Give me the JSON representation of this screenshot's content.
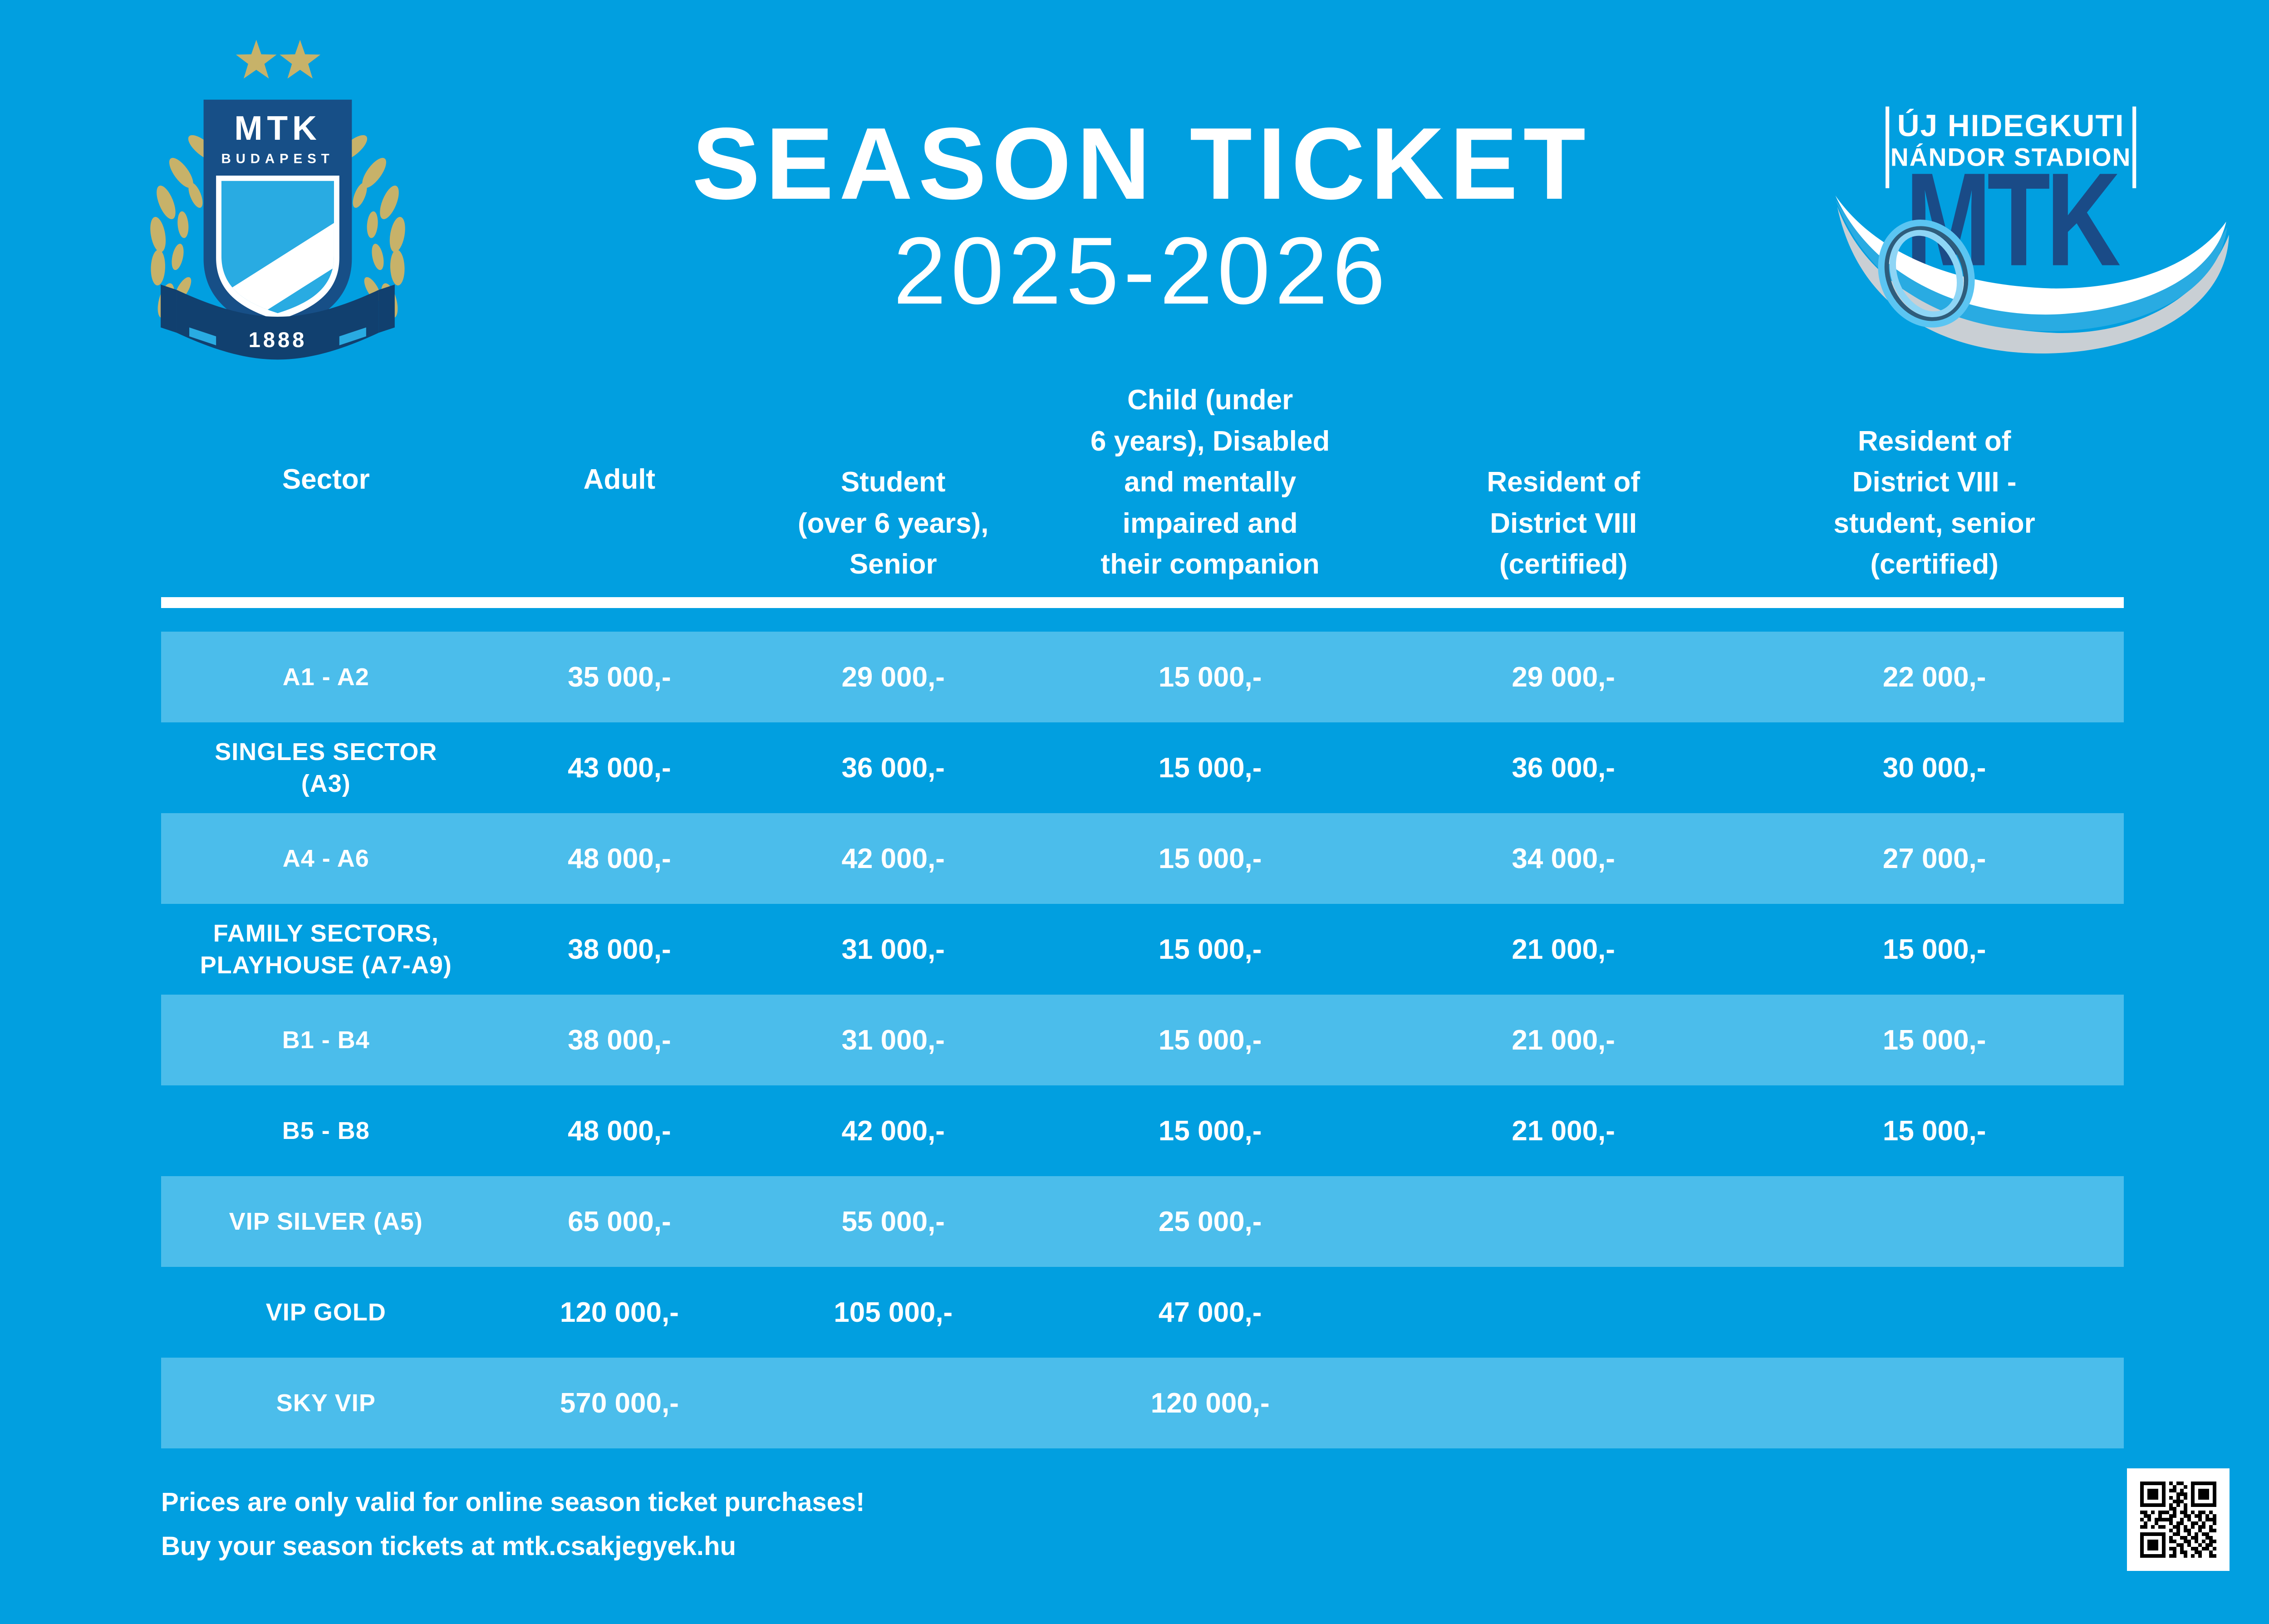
{
  "colors": {
    "background": "#019FE0",
    "row_highlight": "#4BBDEB",
    "text": "#FFFFFF",
    "crest_navy": "#174F87",
    "ribbon_navy": "#11406F",
    "gold": "#C7B269",
    "shield_cyan": "#29ABE2",
    "stadium_navy": "#1A4B87",
    "swoosh_gray": "#C9CFD4",
    "qr_black": "#000000"
  },
  "header": {
    "title": "SEASON TICKET",
    "season": "2025-2026",
    "crest": {
      "club": "MTK",
      "city": "BUDAPEST",
      "founded": "1888"
    },
    "stadium": {
      "line1": "ÚJ HIDEGKUTI",
      "line2": "NÁNDOR STADION",
      "mtk": "MTK"
    }
  },
  "table": {
    "columns": [
      "Sector",
      "Adult",
      "Student\n(over 6 years),\nSenior",
      "Child (under\n6 years), Disabled\nand mentally\nimpaired and\ntheir companion",
      "Resident of\nDistrict VIII\n(certified)",
      "Resident of\nDistrict VIII -\nstudent, senior\n(certified)"
    ],
    "rows": [
      {
        "sector": "A1 - A2",
        "prices": [
          "35 000,-",
          "29 000,-",
          "15 000,-",
          "29 000,-",
          "22 000,-"
        ]
      },
      {
        "sector": "SINGLES SECTOR\n(A3)",
        "prices": [
          "43 000,-",
          "36 000,-",
          "15 000,-",
          "36 000,-",
          "30 000,-"
        ]
      },
      {
        "sector": "A4 - A6",
        "prices": [
          "48 000,-",
          "42 000,-",
          "15 000,-",
          "34 000,-",
          "27 000,-"
        ]
      },
      {
        "sector": "FAMILY SECTORS,\nPLAYHOUSE (A7-A9)",
        "prices": [
          "38 000,-",
          "31 000,-",
          "15 000,-",
          "21 000,-",
          "15 000,-"
        ]
      },
      {
        "sector": "B1 - B4",
        "prices": [
          "38 000,-",
          "31 000,-",
          "15 000,-",
          "21 000,-",
          "15 000,-"
        ]
      },
      {
        "sector": "B5 - B8",
        "prices": [
          "48 000,-",
          "42 000,-",
          "15 000,-",
          "21 000,-",
          "15 000,-"
        ]
      },
      {
        "sector": "VIP SILVER (A5)",
        "prices": [
          "65 000,-",
          "55 000,-",
          "25 000,-",
          "",
          ""
        ]
      },
      {
        "sector": "VIP GOLD",
        "prices": [
          "120 000,-",
          "105 000,-",
          "47 000,-",
          "",
          ""
        ]
      },
      {
        "sector": "SKY VIP",
        "prices": [
          "570 000,-",
          "",
          "120 000,-",
          "",
          ""
        ]
      }
    ]
  },
  "footer": {
    "line1": "Prices are only valid for online season ticket purchases!",
    "line2": "Buy your season tickets at mtk.csakjegyek.hu"
  },
  "qr_matrix": [
    "111111101011001111111",
    "100000100100101000001",
    "101110101101001011101",
    "101110100011101011101",
    "101110101010101011101",
    "100000100111001000001",
    "111111101010101111111",
    "000000001100100000000",
    "110101110101101011010",
    "011001001100110110101",
    "101011111001010010111",
    "010010001011001101001",
    "110101100110101011010",
    "000000001010110010011",
    "111111100110010101100",
    "100000101001101100110",
    "101110101100110101011",
    "101110100011010010110",
    "101110101101001101101",
    "100000100101100110010",
    "111111101100101010011"
  ]
}
